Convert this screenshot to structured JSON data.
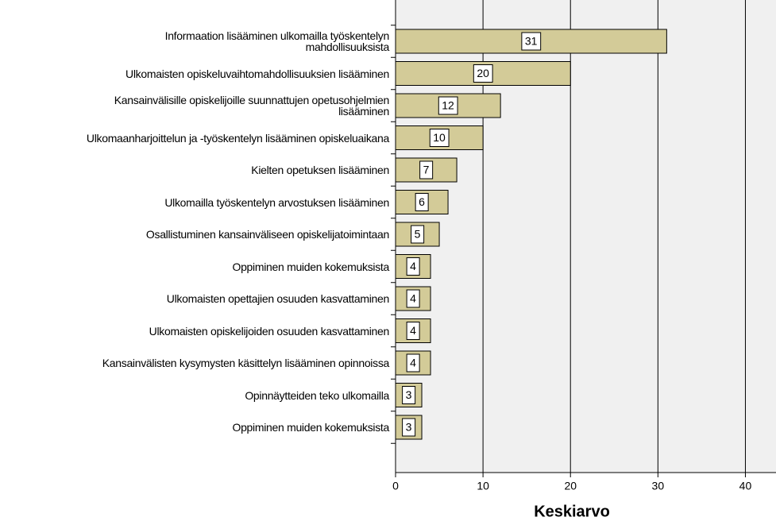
{
  "chart_data": {
    "type": "barh",
    "x_label": "Keskiarvo",
    "categories": [
      "Informaation lisääminen ulkomailla työskentelyn\nmahdollisuuksista",
      "Ulkomaisten opiskeluvaihtomahdollisuuksien lisääminen",
      "Kansainvälisille opiskelijoille suunnattujen opetusohjelmien\nlisääminen",
      "Ulkomaanharjoittelun ja -työskentelyn lisääminen opiskeluaikana",
      "Kielten opetuksen lisääminen",
      "Ulkomailla työskentelyn arvostuksen lisääminen",
      "Osallistuminen kansainväliseen opiskelijatoimintaan",
      "Oppiminen muiden kokemuksista",
      "Ulkomaisten opettajien osuuden kasvattaminen",
      "Ulkomaisten opiskelijoiden osuuden kasvattaminen",
      "Kansainvälisten kysymysten käsittelyn lisääminen opinnoissa",
      "Opinnäytteiden teko ulkomailla",
      "Oppiminen muiden kokemuksista"
    ],
    "values": [
      31,
      20,
      12,
      10,
      7,
      6,
      5,
      4,
      4,
      4,
      4,
      3,
      3
    ],
    "color": "#d3cb98",
    "xlim": [
      0,
      43.5
    ],
    "xticks": [
      0,
      10,
      20,
      30,
      40
    ],
    "grid": true
  }
}
